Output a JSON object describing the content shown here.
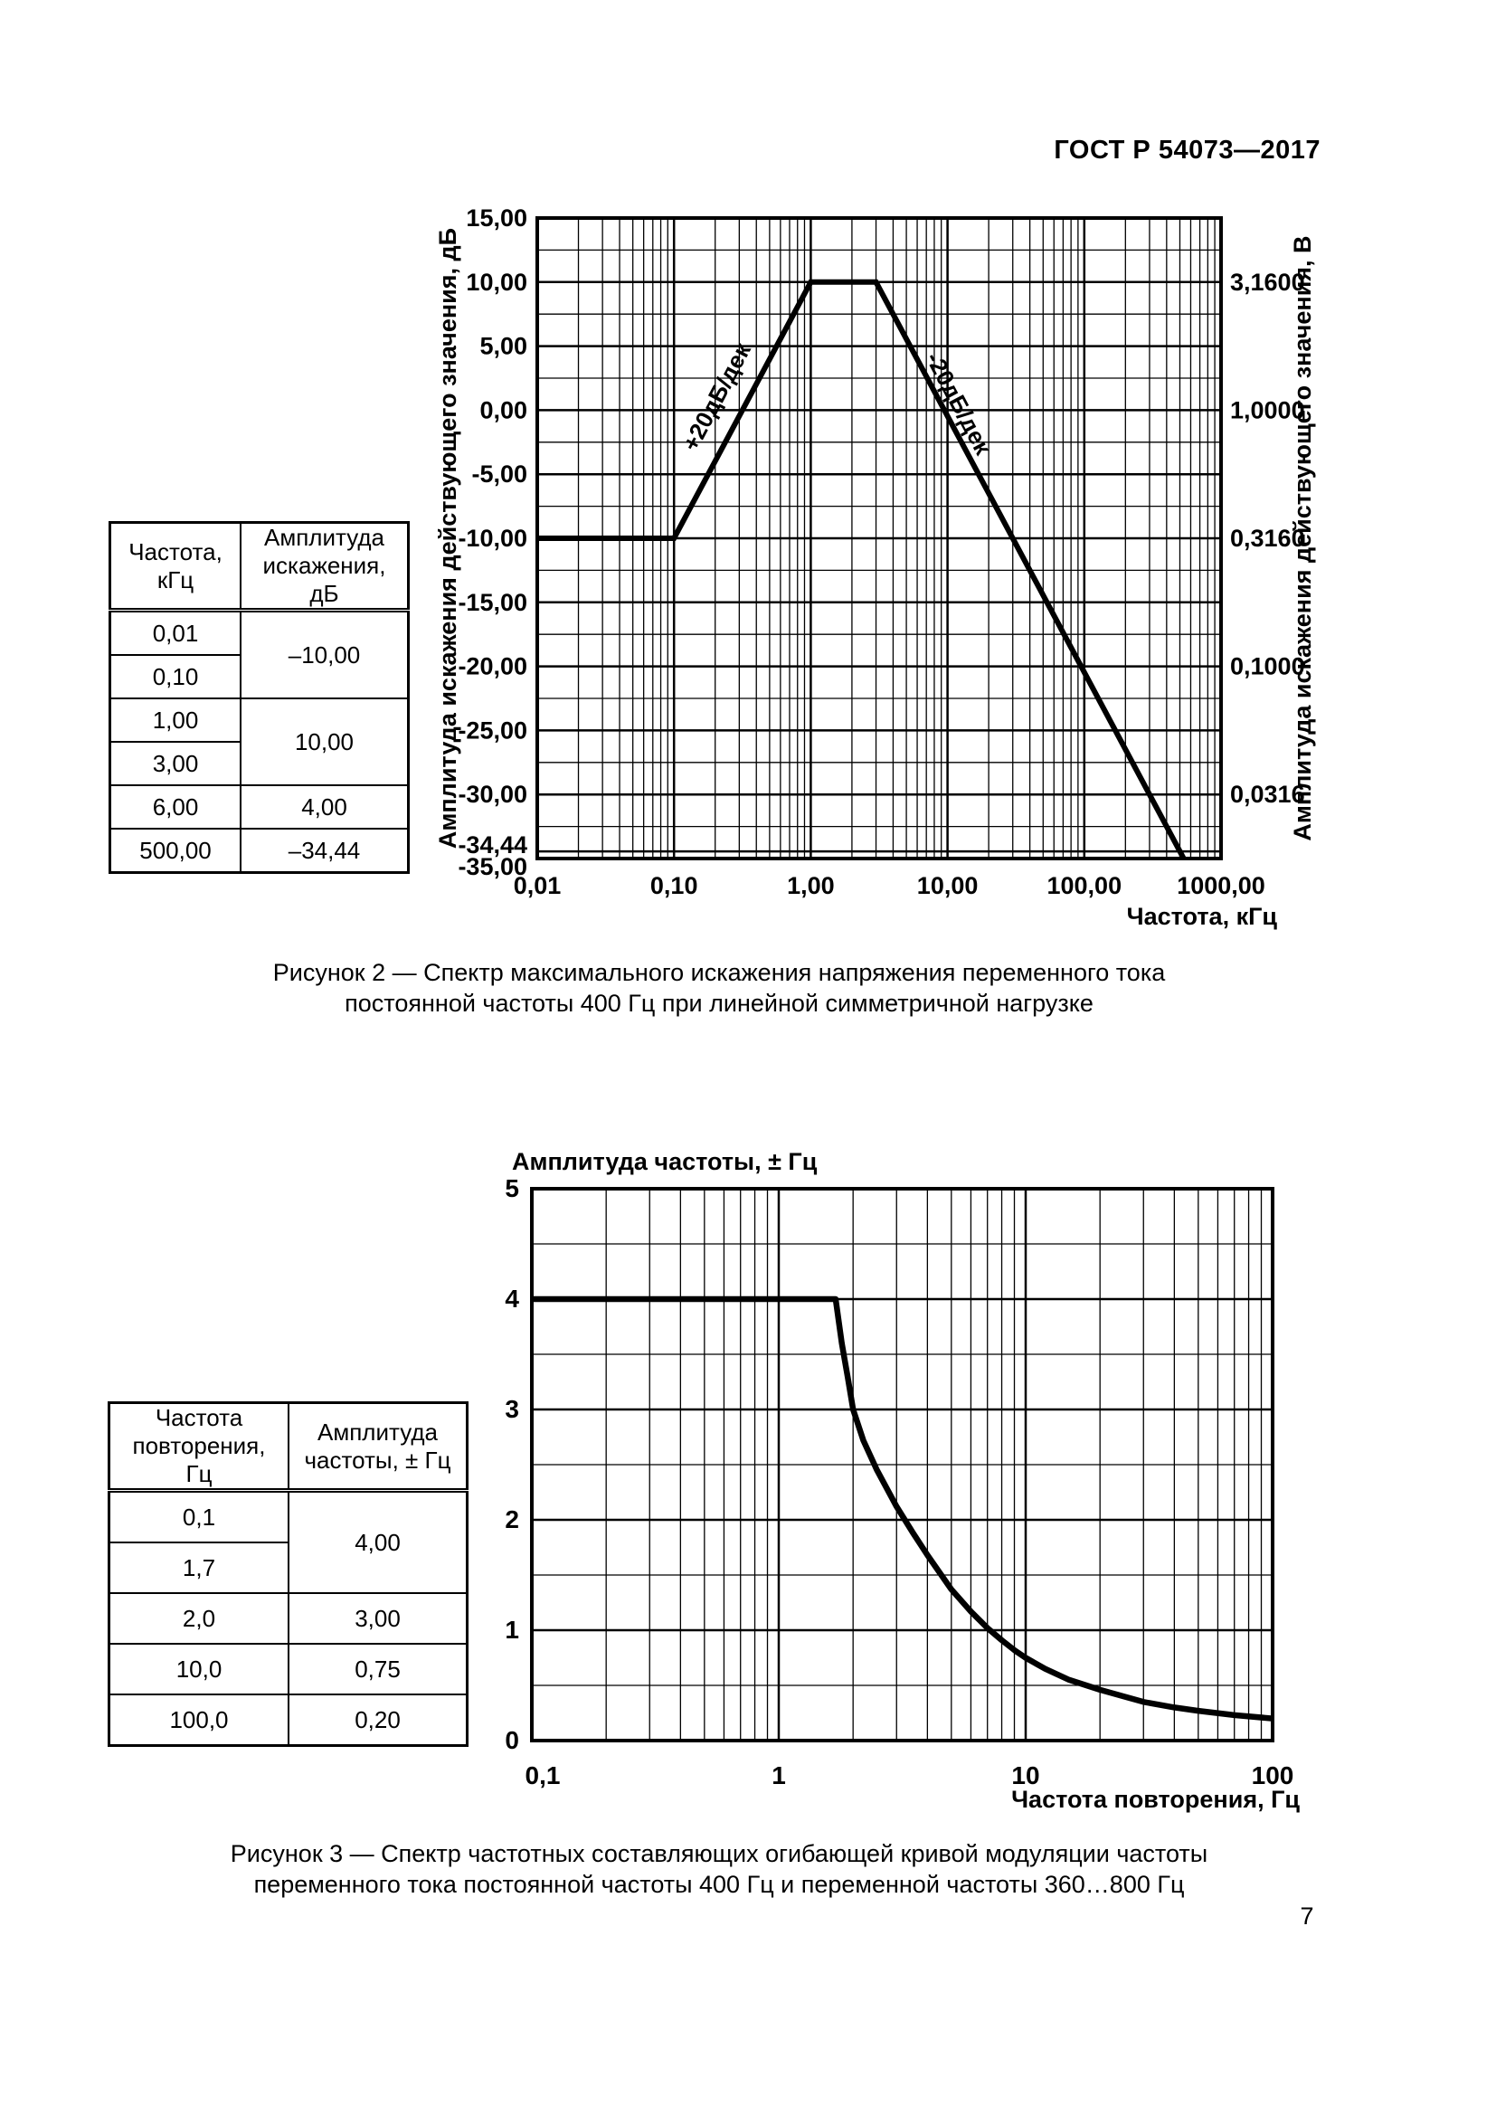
{
  "doc_header": "ГОСТ Р 54073—2017",
  "page_number": "7",
  "figure2": {
    "caption_line1": "Рисунок 2 — Спектр максимального искажения напряжения переменного тока",
    "caption_line2": "постоянной частоты 400 Гц при линейной симметричной нагрузке",
    "table": {
      "header_col1": "Частота,\nкГц",
      "header_col2": "Амплитуда\nискажения, дБ",
      "f1": "0,01",
      "f2": "0,10",
      "f3": "1,00",
      "f4": "3,00",
      "f5": "6,00",
      "f6": "500,00",
      "a12": "–10,00",
      "a34": "10,00",
      "a5": "4,00",
      "a6": "–34,44"
    }
  },
  "figure3": {
    "caption_line1": "Рисунок 3 — Спектр частотных составляющих огибающей кривой модуляции частоты",
    "caption_line2": "переменного тока постоянной частоты 400 Гц и переменной частоты 360…800 Гц",
    "table": {
      "header_col1": "Частота\nповторения, Гц",
      "header_col2": "Амплитуда\nчастоты, ± Гц",
      "f1": "0,1",
      "f2": "1,7",
      "f3": "2,0",
      "f4": "10,0",
      "f5": "100,0",
      "a12": "4,00",
      "a3": "3,00",
      "a4": "0,75",
      "a5": "0,20"
    }
  },
  "chart_data": [
    {
      "type": "line",
      "x_scale": "log",
      "ylabel_left": "Амплитуда искажения действующего значения, дБ",
      "ylabel_right": "Амплитуда искажения действующего значения, В",
      "xlabel": "Частота, кГц",
      "xlim": [
        0.01,
        1000
      ],
      "ylim": [
        -35,
        15
      ],
      "x_tick_values": [
        0.01,
        0.1,
        1,
        10,
        100,
        1000
      ],
      "x_tick_labels": [
        "0,01",
        "0,10",
        "1,00",
        "10,00",
        "100,00",
        "1000,00"
      ],
      "y_tick_values": [
        15,
        10,
        5,
        0,
        -5,
        -10,
        -15,
        -20,
        -25,
        -30,
        -34.44,
        -35
      ],
      "y_tick_labels": [
        "15,00",
        "10,00",
        "5,00",
        "0,00",
        "-5,00",
        "-10,00",
        "-15,00",
        "-20,00",
        "-25,00",
        "-30,00",
        "-34,44",
        "-35,00"
      ],
      "right_tick_values": [
        10,
        0,
        -10,
        -20,
        -30
      ],
      "right_tick_labels": [
        "3,1600",
        "1,0000",
        "0,3160",
        "0,1000",
        "0,0316"
      ],
      "grid": "log-x minor 2..9 per decade; y minor every 2.5 дБ; extra line at -34.44",
      "annotations": [
        {
          "text": "+20дБ/дек",
          "slope": "+20 dB/decade"
        },
        {
          "text": "-20дБ/дек",
          "slope": "-20 dB/decade"
        }
      ],
      "key_points": [
        [
          0.01,
          -10
        ],
        [
          0.1,
          -10
        ],
        [
          1,
          10
        ],
        [
          3,
          10
        ],
        [
          6,
          4
        ],
        [
          500,
          -34.44
        ]
      ],
      "series": [
        {
          "name": "спектр максимального искажения",
          "points": [
            [
              0.01,
              -10
            ],
            [
              0.1,
              -10
            ],
            [
              1,
              10
            ],
            [
              3,
              10
            ],
            [
              500,
              -34.44
            ],
            [
              533,
              -35
            ]
          ]
        }
      ]
    },
    {
      "type": "line",
      "x_scale": "log",
      "title": "Амплитуда частоты, ± Гц",
      "xlabel": "Частота повторения, Гц",
      "xlim": [
        0.1,
        100
      ],
      "ylim": [
        0,
        5
      ],
      "x_tick_values": [
        0.1,
        1,
        10,
        100
      ],
      "x_tick_labels": [
        "0,1",
        "1",
        "10",
        "100"
      ],
      "y_tick_values": [
        5,
        4,
        3,
        2,
        1,
        0
      ],
      "y_tick_labels": [
        "5",
        "4",
        "3",
        "2",
        "1",
        "0"
      ],
      "grid": "log-x minor 2..9 per decade; y minor every 0.5 Гц",
      "key_points": [
        [
          0.1,
          4
        ],
        [
          1.7,
          4
        ],
        [
          2,
          3
        ],
        [
          10,
          0.75
        ],
        [
          100,
          0.2
        ]
      ],
      "series": [
        {
          "name": "огибающая кривой модуляции частоты",
          "points": [
            [
              0.1,
              4
            ],
            [
              1.7,
              4
            ],
            [
              1.8,
              3.6
            ],
            [
              1.9,
              3.3
            ],
            [
              2,
              3
            ],
            [
              2.2,
              2.72
            ],
            [
              2.5,
              2.45
            ],
            [
              3,
              2.12
            ],
            [
              3.5,
              1.88
            ],
            [
              4,
              1.68
            ],
            [
              5,
              1.37
            ],
            [
              6,
              1.17
            ],
            [
              7,
              1.02
            ],
            [
              8,
              0.91
            ],
            [
              9,
              0.82
            ],
            [
              10,
              0.75
            ],
            [
              12,
              0.65
            ],
            [
              15,
              0.55
            ],
            [
              20,
              0.46
            ],
            [
              25,
              0.4
            ],
            [
              30,
              0.35
            ],
            [
              40,
              0.3
            ],
            [
              50,
              0.27
            ],
            [
              70,
              0.23
            ],
            [
              100,
              0.2
            ]
          ]
        }
      ]
    }
  ]
}
